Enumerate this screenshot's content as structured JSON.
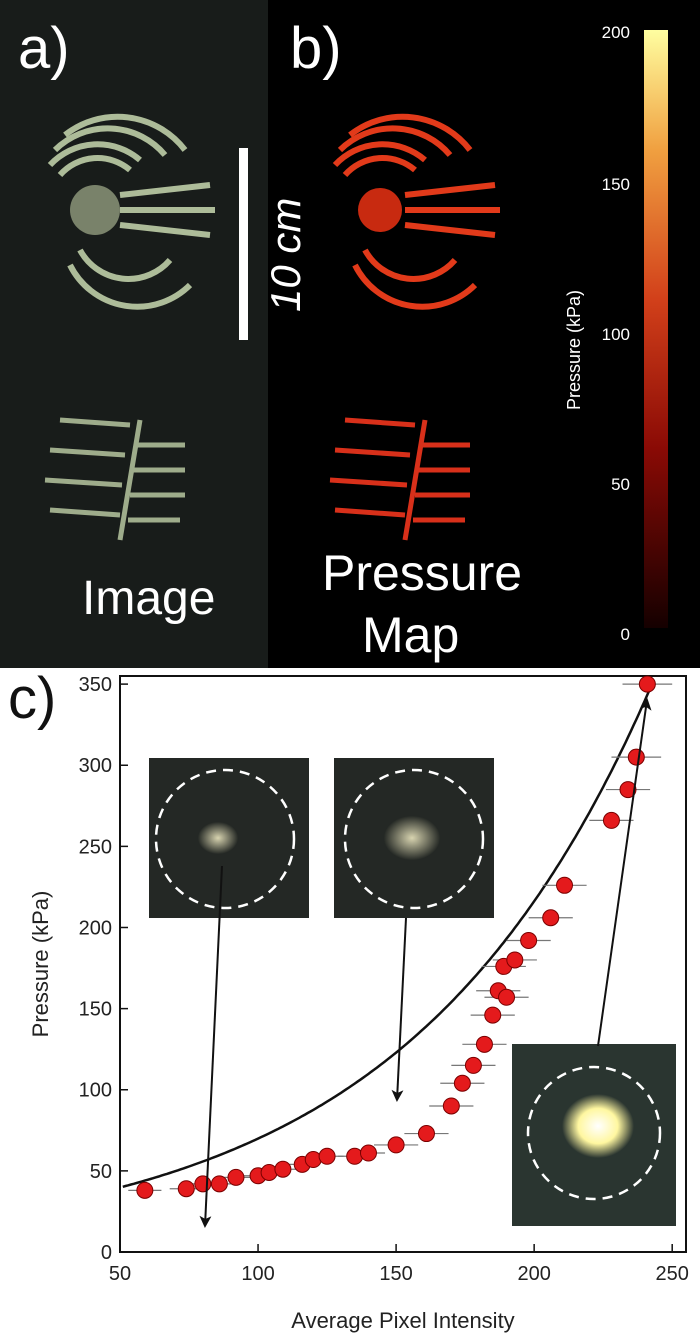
{
  "panel_a": {
    "letter": "a)",
    "caption": "Image"
  },
  "panel_b": {
    "letter": "b)",
    "caption_line1": "Pressure",
    "caption_line2": "Map"
  },
  "scale_bar": {
    "label": "10 cm"
  },
  "colorbar": {
    "label": "Pressure (kPa)",
    "ticks": [
      "200",
      "150",
      "100",
      "50",
      "0"
    ],
    "colors": {
      "high": "#fffea0",
      "mid": "#e05020",
      "low": "#200000"
    }
  },
  "panel_c": {
    "letter": "c)"
  },
  "chart_data": {
    "type": "scatter",
    "xlabel": "Average Pixel Intensity",
    "ylabel": "Pressure (kPa)",
    "xlim": [
      50,
      255
    ],
    "ylim": [
      0,
      355
    ],
    "xticks": [
      50,
      100,
      150,
      200,
      250
    ],
    "yticks": [
      0,
      50,
      100,
      150,
      200,
      250,
      300,
      350
    ],
    "series": [
      {
        "points": [
          [
            59,
            38
          ],
          [
            74,
            39
          ],
          [
            80,
            42
          ],
          [
            86,
            42
          ],
          [
            92,
            46
          ],
          [
            100,
            47
          ],
          [
            104,
            49
          ],
          [
            109,
            51
          ],
          [
            116,
            54
          ],
          [
            120,
            57
          ],
          [
            125,
            59
          ],
          [
            135,
            59
          ],
          [
            140,
            61
          ],
          [
            150,
            66
          ],
          [
            161,
            73
          ],
          [
            170,
            90
          ],
          [
            174,
            104
          ],
          [
            178,
            115
          ],
          [
            182,
            128
          ],
          [
            185,
            146
          ],
          [
            187,
            161
          ],
          [
            189,
            176
          ],
          [
            190,
            157
          ],
          [
            193,
            180
          ],
          [
            198,
            192
          ],
          [
            206,
            206
          ],
          [
            211,
            226
          ],
          [
            228,
            266
          ],
          [
            234,
            285
          ],
          [
            237,
            305
          ],
          [
            241,
            350
          ]
        ],
        "xerr": [
          6,
          6,
          6,
          6,
          6,
          6,
          6,
          6,
          6,
          6,
          6,
          6,
          6,
          8,
          8,
          8,
          8,
          8,
          8,
          8,
          8,
          8,
          8,
          8,
          8,
          8,
          8,
          8,
          8,
          9,
          9
        ],
        "color": "#e41a1c"
      }
    ],
    "fit_curve": "exponential",
    "arrows_to_x": [
      80,
      150,
      240
    ],
    "grid": false
  }
}
